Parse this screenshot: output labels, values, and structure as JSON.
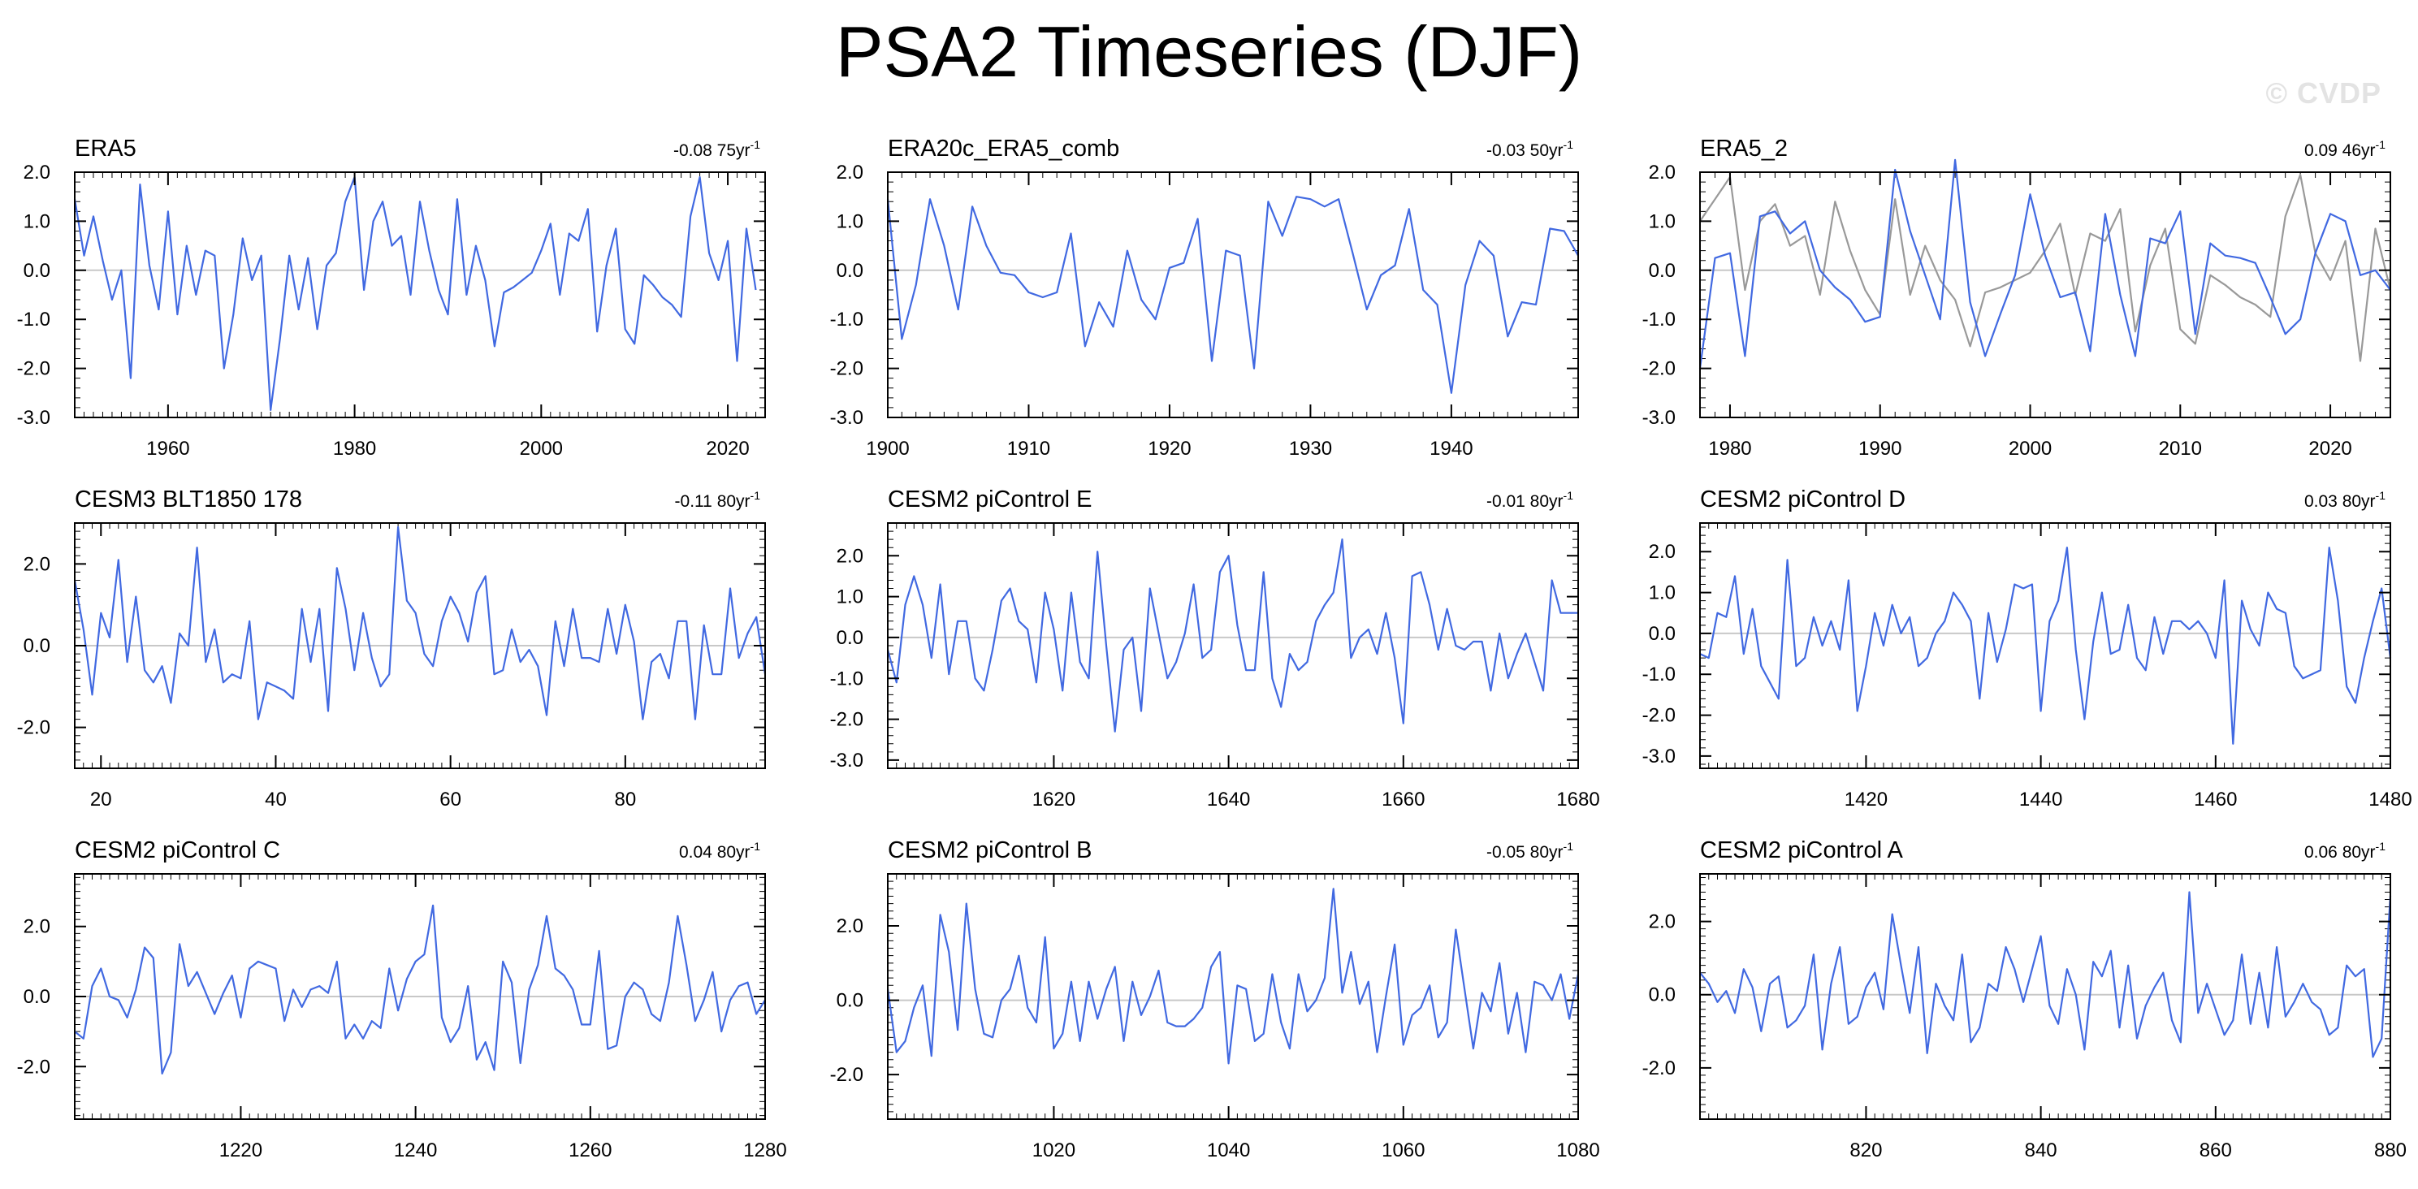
{
  "page": {
    "title": "PSA2 Timeseries (DJF)",
    "watermark": "© CVDP"
  },
  "colors": {
    "obs": "#4169e1",
    "secondary": "#999999",
    "axis": "#000000",
    "zero_line": "#c8c8c8"
  },
  "chart_data": [
    {
      "type": "line",
      "title": "ERA5",
      "trend_label": "-0.08 75yr",
      "trend_sup": "-1",
      "xlim": [
        1950,
        2024
      ],
      "ylim": [
        -3.0,
        2.0
      ],
      "yticks": [
        -3.0,
        -2.0,
        -1.0,
        0.0,
        1.0,
        2.0
      ],
      "ytick_labels": [
        "-3.0",
        "-2.0",
        "-1.0",
        "0.0",
        "1.0",
        "2.0"
      ],
      "xticks": [
        1960,
        1980,
        2000,
        2020
      ],
      "xtick_labels": [
        "1960",
        "1980",
        "2000",
        "2020"
      ],
      "series": [
        {
          "name": "ERA5",
          "color": "#4169e1",
          "x_start": 1950,
          "x_step": 1,
          "values": [
            1.45,
            0.3,
            1.1,
            0.2,
            -0.6,
            0.0,
            -2.2,
            1.75,
            0.1,
            -0.8,
            1.2,
            -0.9,
            0.5,
            -0.5,
            0.4,
            0.3,
            -2.0,
            -0.9,
            0.65,
            -0.2,
            0.3,
            -2.85,
            -1.4,
            0.3,
            -0.8,
            0.25,
            -1.2,
            0.1,
            0.35,
            1.4,
            1.9,
            -0.4,
            1.0,
            1.4,
            0.5,
            0.7,
            -0.5,
            1.4,
            0.4,
            -0.4,
            -0.9,
            1.45,
            -0.5,
            0.5,
            -0.2,
            -1.55,
            -0.45,
            -0.35,
            -0.2,
            -0.05,
            0.4,
            0.95,
            -0.5,
            0.75,
            0.6,
            1.25,
            -1.25,
            0.1,
            0.85,
            -1.2,
            -1.5,
            -0.1,
            -0.3,
            -0.55,
            -0.7,
            -0.95,
            1.1,
            1.9,
            0.35,
            -0.2,
            0.6,
            -1.85,
            0.85,
            -0.4
          ]
        }
      ]
    },
    {
      "type": "line",
      "title": "ERA20c_ERA5_comb",
      "trend_label": "-0.03 50yr",
      "trend_sup": "-1",
      "xlim": [
        1900,
        1949
      ],
      "ylim": [
        -3.0,
        2.0
      ],
      "yticks": [
        -3.0,
        -2.0,
        -1.0,
        0.0,
        1.0,
        2.0
      ],
      "ytick_labels": [
        "-3.0",
        "-2.0",
        "-1.0",
        "0.0",
        "1.0",
        "2.0"
      ],
      "xticks": [
        1900,
        1910,
        1920,
        1930,
        1940
      ],
      "xtick_labels": [
        "1900",
        "1910",
        "1920",
        "1930",
        "1940"
      ],
      "series": [
        {
          "name": "ERA20c_ERA5_comb",
          "color": "#4169e1",
          "x_start": 1900,
          "x_step": 1,
          "values": [
            1.45,
            -1.4,
            -0.3,
            1.45,
            0.5,
            -0.8,
            1.3,
            0.5,
            -0.05,
            -0.1,
            -0.45,
            -0.55,
            -0.45,
            0.75,
            -1.55,
            -0.65,
            -1.15,
            0.4,
            -0.6,
            -1.0,
            0.05,
            0.15,
            1.05,
            -1.85,
            0.4,
            0.3,
            -2.0,
            1.4,
            0.7,
            1.5,
            1.45,
            1.3,
            1.45,
            0.35,
            -0.8,
            -0.1,
            0.1,
            1.25,
            -0.4,
            -0.7,
            -2.5,
            -0.3,
            0.6,
            0.3,
            -1.35,
            -0.65,
            -0.7,
            0.85,
            0.8,
            0.3
          ]
        }
      ]
    },
    {
      "type": "line",
      "title": "ERA5_2",
      "trend_label": "0.09 46yr",
      "trend_sup": "-1",
      "xlim": [
        1978,
        2024
      ],
      "ylim": [
        -3.0,
        2.0
      ],
      "yticks": [
        -3.0,
        -2.0,
        -1.0,
        0.0,
        1.0,
        2.0
      ],
      "ytick_labels": [
        "-3.0",
        "-2.0",
        "-1.0",
        "0.0",
        "1.0",
        "2.0"
      ],
      "xticks": [
        1980,
        1990,
        2000,
        2010,
        2020
      ],
      "xtick_labels": [
        "1980",
        "1990",
        "2000",
        "2010",
        "2020"
      ],
      "series": [
        {
          "name": "ERA5",
          "color": "#999999",
          "x_start": 1978,
          "x_step": 1,
          "values": [
            1.0,
            1.45,
            1.9,
            -0.4,
            1.0,
            1.35,
            0.5,
            0.7,
            -0.5,
            1.4,
            0.4,
            -0.4,
            -0.9,
            1.45,
            -0.5,
            0.5,
            -0.2,
            -0.6,
            -1.55,
            -0.45,
            -0.35,
            -0.2,
            -0.05,
            0.4,
            0.95,
            -0.5,
            0.75,
            0.6,
            1.25,
            -1.25,
            0.1,
            0.85,
            -1.2,
            -1.5,
            -0.1,
            -0.3,
            -0.55,
            -0.7,
            -0.95,
            1.1,
            1.95,
            0.35,
            -0.2,
            0.6,
            -1.85,
            0.85,
            -0.4
          ]
        },
        {
          "name": "ERA5_2",
          "color": "#4169e1",
          "x_start": 1978,
          "x_step": 1,
          "values": [
            -2.0,
            0.25,
            0.35,
            -1.75,
            1.1,
            1.2,
            0.75,
            1.0,
            0.0,
            -0.35,
            -0.6,
            -1.05,
            -0.95,
            2.05,
            0.8,
            -0.1,
            -1.0,
            2.25,
            -0.65,
            -1.75,
            -0.9,
            -0.1,
            1.55,
            0.3,
            -0.55,
            -0.45,
            -1.65,
            1.15,
            -0.5,
            -1.75,
            0.65,
            0.55,
            1.2,
            -1.3,
            0.55,
            0.3,
            0.25,
            0.15,
            -0.55,
            -1.3,
            -1.0,
            0.35,
            1.15,
            1.0,
            -0.1,
            0.0,
            -0.4
          ]
        }
      ]
    },
    {
      "type": "line",
      "title": "CESM3 BLT1850 178",
      "trend_label": "-0.11 80yr",
      "trend_sup": "-1",
      "xlim": [
        17,
        96
      ],
      "ylim": [
        -3.0,
        3.0
      ],
      "yticks": [
        -2.0,
        0.0,
        2.0
      ],
      "ytick_labels": [
        "-2.0",
        "0.0",
        "2.0"
      ],
      "xticks": [
        20,
        40,
        60,
        80
      ],
      "xtick_labels": [
        "20",
        "40",
        "60",
        "80"
      ],
      "series": [
        {
          "name": "CESM3 BLT1850 178",
          "color": "#4169e1",
          "x_start": 17,
          "x_step": 1,
          "values": [
            1.6,
            0.4,
            -1.2,
            0.8,
            0.2,
            2.1,
            -0.4,
            1.2,
            -0.6,
            -0.9,
            -0.5,
            -1.4,
            0.3,
            0.0,
            2.4,
            -0.4,
            0.4,
            -0.9,
            -0.7,
            -0.8,
            0.6,
            -1.8,
            -0.9,
            -1.0,
            -1.1,
            -1.3,
            0.9,
            -0.4,
            0.9,
            -1.6,
            1.9,
            0.9,
            -0.6,
            0.8,
            -0.3,
            -1.0,
            -0.7,
            2.9,
            1.1,
            0.8,
            -0.2,
            -0.5,
            0.6,
            1.2,
            0.8,
            0.1,
            1.3,
            1.7,
            -0.7,
            -0.6,
            0.4,
            -0.4,
            -0.1,
            -0.5,
            -1.7,
            0.6,
            -0.5,
            0.9,
            -0.3,
            -0.3,
            -0.4,
            0.9,
            -0.2,
            1.0,
            0.1,
            -1.8,
            -0.4,
            -0.2,
            -0.8,
            0.6,
            0.6,
            -1.8,
            0.5,
            -0.7,
            -0.7,
            1.4,
            -0.3,
            0.3,
            0.7,
            -0.7
          ]
        }
      ]
    },
    {
      "type": "line",
      "title": "CESM2 piControl E",
      "trend_label": "-0.01 80yr",
      "trend_sup": "-1",
      "xlim": [
        1601,
        1680
      ],
      "ylim": [
        -3.2,
        2.8
      ],
      "yticks": [
        -3.0,
        -2.0,
        -1.0,
        0.0,
        1.0,
        2.0
      ],
      "ytick_labels": [
        "-3.0",
        "-2.0",
        "-1.0",
        "0.0",
        "1.0",
        "2.0"
      ],
      "xticks": [
        1620,
        1640,
        1660,
        1680
      ],
      "xtick_labels": [
        "1620",
        "1640",
        "1660",
        "1680"
      ],
      "series": [
        {
          "name": "CESM2 piControl E",
          "color": "#4169e1",
          "x_start": 1601,
          "x_step": 1,
          "values": [
            -0.3,
            -1.1,
            0.8,
            1.5,
            0.8,
            -0.5,
            1.3,
            -0.9,
            0.4,
            0.4,
            -1.0,
            -1.3,
            -0.3,
            0.9,
            1.2,
            0.4,
            0.2,
            -1.1,
            1.1,
            0.2,
            -1.3,
            1.1,
            -0.6,
            -1.0,
            2.1,
            -0.2,
            -2.3,
            -0.3,
            0.0,
            -1.8,
            1.2,
            0.1,
            -1.0,
            -0.6,
            0.1,
            1.3,
            -0.5,
            -0.3,
            1.6,
            2.0,
            0.3,
            -0.8,
            -0.8,
            1.6,
            -1.0,
            -1.7,
            -0.4,
            -0.8,
            -0.6,
            0.4,
            0.8,
            1.1,
            2.4,
            -0.5,
            0.0,
            0.2,
            -0.4,
            0.6,
            -0.5,
            -2.1,
            1.5,
            1.6,
            0.8,
            -0.3,
            0.7,
            -0.2,
            -0.3,
            -0.1,
            -0.1,
            -1.3,
            0.1,
            -1.0,
            -0.4,
            0.1,
            -0.6,
            -1.3,
            1.4,
            0.6,
            0.6,
            0.6
          ]
        }
      ]
    },
    {
      "type": "line",
      "title": "CESM2 piControl D",
      "trend_label": "0.03 80yr",
      "trend_sup": "-1",
      "xlim": [
        1401,
        1480
      ],
      "ylim": [
        -3.3,
        2.7
      ],
      "yticks": [
        -3.0,
        -2.0,
        -1.0,
        0.0,
        1.0,
        2.0
      ],
      "ytick_labels": [
        "-3.0",
        "-2.0",
        "-1.0",
        "0.0",
        "1.0",
        "2.0"
      ],
      "xticks": [
        1420,
        1440,
        1460,
        1480
      ],
      "xtick_labels": [
        "1420",
        "1440",
        "1460",
        "1480"
      ],
      "series": [
        {
          "name": "CESM2 piControl D",
          "color": "#4169e1",
          "x_start": 1401,
          "x_step": 1,
          "values": [
            -0.5,
            -0.6,
            0.5,
            0.4,
            1.4,
            -0.5,
            0.6,
            -0.8,
            -1.2,
            -1.6,
            1.8,
            -0.8,
            -0.6,
            0.4,
            -0.3,
            0.3,
            -0.4,
            1.3,
            -1.9,
            -0.8,
            0.5,
            -0.3,
            0.7,
            0.0,
            0.4,
            -0.8,
            -0.6,
            0.0,
            0.3,
            1.0,
            0.7,
            0.3,
            -1.6,
            0.5,
            -0.7,
            0.1,
            1.2,
            1.1,
            1.2,
            -1.9,
            0.3,
            0.8,
            2.1,
            -0.4,
            -2.1,
            -0.2,
            1.0,
            -0.5,
            -0.4,
            0.7,
            -0.6,
            -0.9,
            0.4,
            -0.5,
            0.3,
            0.3,
            0.1,
            0.3,
            0.0,
            -0.6,
            1.3,
            -2.7,
            0.8,
            0.1,
            -0.3,
            1.0,
            0.6,
            0.5,
            -0.8,
            -1.1,
            -1.0,
            -0.9,
            2.1,
            0.8,
            -1.3,
            -1.7,
            -0.6,
            0.3,
            1.1,
            -0.6
          ]
        }
      ]
    },
    {
      "type": "line",
      "title": "CESM2 piControl C",
      "trend_label": "0.04 80yr",
      "trend_sup": "-1",
      "xlim": [
        1201,
        1280
      ],
      "ylim": [
        -3.5,
        3.5
      ],
      "yticks": [
        -2.0,
        0.0,
        2.0
      ],
      "ytick_labels": [
        "-2.0",
        "0.0",
        "2.0"
      ],
      "xticks": [
        1220,
        1240,
        1260,
        1280
      ],
      "xtick_labels": [
        "1220",
        "1240",
        "1260",
        "1280"
      ],
      "series": [
        {
          "name": "CESM2 piControl C",
          "color": "#4169e1",
          "x_start": 1201,
          "x_step": 1,
          "values": [
            -1.0,
            -1.2,
            0.3,
            0.8,
            0.0,
            -0.1,
            -0.6,
            0.2,
            1.4,
            1.1,
            -2.2,
            -1.6,
            1.5,
            0.3,
            0.7,
            0.1,
            -0.5,
            0.1,
            0.6,
            -0.6,
            0.8,
            1.0,
            0.9,
            0.8,
            -0.7,
            0.2,
            -0.3,
            0.2,
            0.3,
            0.1,
            1.0,
            -1.2,
            -0.8,
            -1.2,
            -0.7,
            -0.9,
            0.8,
            -0.4,
            0.5,
            1.0,
            1.2,
            2.6,
            -0.6,
            -1.3,
            -0.9,
            0.3,
            -1.8,
            -1.3,
            -2.1,
            1.0,
            0.4,
            -1.9,
            0.2,
            0.9,
            2.3,
            0.8,
            0.6,
            0.2,
            -0.8,
            -0.8,
            1.3,
            -1.5,
            -1.4,
            0.0,
            0.4,
            0.2,
            -0.5,
            -0.7,
            0.4,
            2.3,
            0.9,
            -0.7,
            -0.1,
            0.7,
            -1.0,
            -0.1,
            0.3,
            0.4,
            -0.5,
            -0.1
          ]
        }
      ]
    },
    {
      "type": "line",
      "title": "CESM2 piControl B",
      "trend_label": "-0.05 80yr",
      "trend_sup": "-1",
      "xlim": [
        1001,
        1080
      ],
      "ylim": [
        -3.2,
        3.4
      ],
      "yticks": [
        -2.0,
        0.0,
        2.0
      ],
      "ytick_labels": [
        "-2.0",
        "0.0",
        "2.0"
      ],
      "xticks": [
        1020,
        1040,
        1060,
        1080
      ],
      "xtick_labels": [
        "1020",
        "1040",
        "1060",
        "1080"
      ],
      "series": [
        {
          "name": "CESM2 piControl B",
          "color": "#4169e1",
          "x_start": 1001,
          "x_step": 1,
          "values": [
            0.3,
            -1.4,
            -1.1,
            -0.2,
            0.4,
            -1.5,
            2.3,
            1.3,
            -0.8,
            2.6,
            0.3,
            -0.9,
            -1.0,
            0.0,
            0.3,
            1.2,
            -0.2,
            -0.6,
            1.7,
            -1.3,
            -0.9,
            0.5,
            -1.1,
            0.5,
            -0.5,
            0.3,
            0.9,
            -1.1,
            0.5,
            -0.4,
            0.1,
            0.8,
            -0.6,
            -0.7,
            -0.7,
            -0.5,
            -0.2,
            0.9,
            1.3,
            -1.7,
            0.4,
            0.3,
            -1.1,
            -0.9,
            0.7,
            -0.6,
            -1.3,
            0.7,
            -0.3,
            0.0,
            0.6,
            3.0,
            0.2,
            1.3,
            -0.1,
            0.5,
            -1.4,
            0.1,
            1.5,
            -1.2,
            -0.4,
            -0.2,
            0.4,
            -1.0,
            -0.6,
            1.9,
            0.3,
            -1.3,
            0.2,
            -0.3,
            1.0,
            -0.9,
            0.2,
            -1.4,
            0.5,
            0.4,
            0.0,
            0.7,
            -0.5,
            0.7
          ]
        }
      ]
    },
    {
      "type": "line",
      "title": "CESM2 piControl A",
      "trend_label": "0.06 80yr",
      "trend_sup": "-1",
      "xlim": [
        801,
        880
      ],
      "ylim": [
        -3.4,
        3.3
      ],
      "yticks": [
        -2.0,
        0.0,
        2.0
      ],
      "ytick_labels": [
        "-2.0",
        "0.0",
        "2.0"
      ],
      "xticks": [
        820,
        840,
        860,
        880
      ],
      "xtick_labels": [
        "820",
        "840",
        "860",
        "880"
      ],
      "series": [
        {
          "name": "CESM2 piControl A",
          "color": "#4169e1",
          "x_start": 801,
          "x_step": 1,
          "values": [
            0.6,
            0.3,
            -0.2,
            0.1,
            -0.5,
            0.7,
            0.2,
            -1.0,
            0.3,
            0.5,
            -0.9,
            -0.7,
            -0.3,
            1.1,
            -1.5,
            0.3,
            1.3,
            -0.8,
            -0.6,
            0.2,
            0.6,
            -0.4,
            2.2,
            0.8,
            -0.5,
            1.3,
            -1.6,
            0.3,
            -0.3,
            -0.7,
            1.1,
            -1.3,
            -0.9,
            0.3,
            0.1,
            1.3,
            0.7,
            -0.2,
            0.7,
            1.6,
            -0.3,
            -0.8,
            0.7,
            0.0,
            -1.5,
            0.9,
            0.5,
            1.2,
            -0.9,
            0.8,
            -1.2,
            -0.3,
            0.2,
            0.6,
            -0.7,
            -1.3,
            2.8,
            -0.5,
            0.3,
            -0.4,
            -1.1,
            -0.7,
            1.1,
            -0.8,
            0.6,
            -0.9,
            1.3,
            -0.6,
            -0.2,
            0.3,
            -0.2,
            -0.4,
            -1.1,
            -0.9,
            0.8,
            0.5,
            0.7,
            -1.7,
            -1.2,
            2.7
          ]
        }
      ]
    }
  ]
}
